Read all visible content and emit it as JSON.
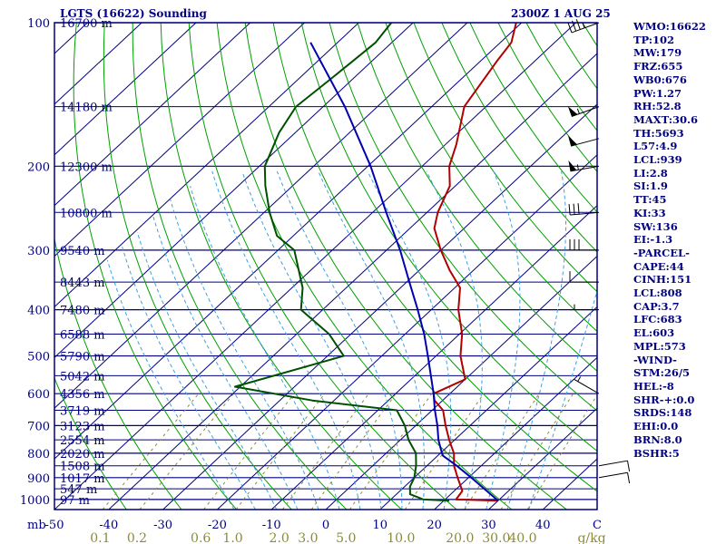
{
  "header": {
    "title": "LGTS (16622) Sounding",
    "time": "2300Z  1 AUG 25"
  },
  "stats": [
    "WMO:16622",
    "TP:102",
    "MW:179",
    "FRZ:655",
    "WB0:676",
    "PW:1.27",
    "RH:52.8",
    "MAXT:30.6",
    "TH:5693",
    "L57:4.9",
    "LCL:939",
    "LI:2.8",
    "SI:1.9",
    "TT:45",
    "KI:33",
    "SW:136",
    "EI:-1.3",
    "-PARCEL-",
    "CAPE:44",
    "CINH:151",
    "LCL:808",
    "CAP:3.7",
    "LFC:683",
    "EL:603",
    "MPL:573",
    "-WIND-",
    "STM:26/5",
    "HEL:-8",
    "SHR-+:0.0",
    "SRDS:148",
    "EHI:0.0",
    "BRN:8.0",
    "BSHR:5"
  ],
  "colors": {
    "axis": "#000080",
    "isobar": "#000080",
    "isotherm": "#000080",
    "dry_adiabat": "#00a000",
    "moist_adiabat": "#40a0e0",
    "mixing_ratio": "#8b8b3a",
    "temperature": "#b00000",
    "dewpoint": "#005000",
    "parcel": "#0000b0",
    "wind": "#000000"
  },
  "chart_data": {
    "type": "skew-t",
    "title": "LGTS (16622) Sounding",
    "x_unit_label": "C",
    "y_unit_label": "mb",
    "pressure_levels": [
      100,
      200,
      300,
      400,
      500,
      600,
      700,
      800,
      900,
      1000
    ],
    "pressure_range": [
      1050,
      100
    ],
    "temperature_ticks": [
      -50,
      -40,
      -30,
      -20,
      -10,
      0,
      10,
      20,
      30,
      40
    ],
    "temperature_range_at_base": [
      -50,
      50
    ],
    "height_labels": [
      {
        "p": 100,
        "text": "16700 m"
      },
      {
        "p": 150,
        "text": "14180 m"
      },
      {
        "p": 200,
        "text": "12300 m"
      },
      {
        "p": 250,
        "text": "10800 m"
      },
      {
        "p": 300,
        "text": "9540 m"
      },
      {
        "p": 350,
        "text": "8443 m"
      },
      {
        "p": 400,
        "text": "7480 m"
      },
      {
        "p": 450,
        "text": "6588 m"
      },
      {
        "p": 500,
        "text": "5790 m"
      },
      {
        "p": 550,
        "text": "5042 m"
      },
      {
        "p": 600,
        "text": "4356 m"
      },
      {
        "p": 650,
        "text": "3719 m"
      },
      {
        "p": 700,
        "text": "3123 m"
      },
      {
        "p": 750,
        "text": "2554 m"
      },
      {
        "p": 800,
        "text": "2020 m"
      },
      {
        "p": 850,
        "text": "1508 m"
      },
      {
        "p": 900,
        "text": "1017 m"
      },
      {
        "p": 950,
        "text": "547 m"
      },
      {
        "p": 1000,
        "text": "97 m"
      }
    ],
    "mixing_ratio_labels": [
      "0.1",
      "0.2",
      "0.6",
      "1.0",
      "2.0",
      "3.0",
      "5.0",
      "10.0",
      "20.0",
      "30.0",
      "40.0",
      "g/kg"
    ],
    "mixing_ratio_values": [
      0.1,
      0.2,
      0.6,
      1.0,
      2.0,
      3.0,
      5.0,
      10.0,
      20.0,
      30.0,
      40.0
    ],
    "series": [
      {
        "key": "temperature",
        "points": [
          [
            1006,
            30
          ],
          [
            1000,
            22
          ],
          [
            960,
            21.5
          ],
          [
            900,
            18
          ],
          [
            850,
            15
          ],
          [
            800,
            12.5
          ],
          [
            750,
            9
          ],
          [
            700,
            5.5
          ],
          [
            650,
            2
          ],
          [
            620,
            -1.5
          ],
          [
            600,
            -3
          ],
          [
            560,
            0
          ],
          [
            500,
            -5.5
          ],
          [
            450,
            -9.5
          ],
          [
            400,
            -15
          ],
          [
            360,
            -19
          ],
          [
            330,
            -24.5
          ],
          [
            300,
            -30
          ],
          [
            270,
            -35.5
          ],
          [
            250,
            -38
          ],
          [
            220,
            -41
          ],
          [
            200,
            -45
          ],
          [
            180,
            -48
          ],
          [
            150,
            -54
          ],
          [
            120,
            -57
          ],
          [
            110,
            -58
          ],
          [
            100,
            -61
          ]
        ]
      },
      {
        "key": "dewpoint",
        "points": [
          [
            1006,
            21
          ],
          [
            1000,
            16
          ],
          [
            975,
            12.5
          ],
          [
            940,
            11
          ],
          [
            900,
            10
          ],
          [
            850,
            8
          ],
          [
            800,
            5.5
          ],
          [
            750,
            1.5
          ],
          [
            700,
            -2
          ],
          [
            650,
            -6.5
          ],
          [
            620,
            -24
          ],
          [
            580,
            -41
          ],
          [
            500,
            -27
          ],
          [
            450,
            -34
          ],
          [
            400,
            -44
          ],
          [
            360,
            -48
          ],
          [
            300,
            -57
          ],
          [
            280,
            -63
          ],
          [
            250,
            -69
          ],
          [
            220,
            -75
          ],
          [
            200,
            -79
          ],
          [
            170,
            -83
          ],
          [
            150,
            -85
          ],
          [
            130,
            -84
          ],
          [
            110,
            -83
          ],
          [
            100,
            -84
          ]
        ]
      },
      {
        "key": "parcel",
        "points": [
          [
            1006,
            30
          ],
          [
            960,
            26
          ],
          [
            900,
            20.5
          ],
          [
            850,
            15.5
          ],
          [
            810,
            11
          ],
          [
            800,
            10.3
          ],
          [
            750,
            7
          ],
          [
            700,
            4
          ],
          [
            650,
            0.5
          ],
          [
            600,
            -3
          ],
          [
            500,
            -11.5
          ],
          [
            450,
            -16.5
          ],
          [
            400,
            -22.5
          ],
          [
            350,
            -29.5
          ],
          [
            300,
            -37.5
          ],
          [
            250,
            -47.5
          ],
          [
            200,
            -59.5
          ],
          [
            150,
            -76
          ],
          [
            110,
            -95
          ]
        ]
      }
    ],
    "wind_barbs": [
      {
        "p": 100,
        "kt": 35,
        "dir": 250
      },
      {
        "p": 150,
        "kt": 55,
        "dir": 250
      },
      {
        "p": 175,
        "kt": 50,
        "dir": 255
      },
      {
        "p": 200,
        "kt": 55,
        "dir": 260
      },
      {
        "p": 250,
        "kt": 30,
        "dir": 265
      },
      {
        "p": 300,
        "kt": 30,
        "dir": 270
      },
      {
        "p": 350,
        "kt": 10,
        "dir": 270
      },
      {
        "p": 400,
        "kt": 5,
        "dir": 270
      },
      {
        "p": 600,
        "kt": 5,
        "dir": 300
      },
      {
        "p": 850,
        "kt": 10,
        "dir": 80
      },
      {
        "p": 900,
        "kt": 10,
        "dir": 80
      }
    ],
    "grid": true
  }
}
